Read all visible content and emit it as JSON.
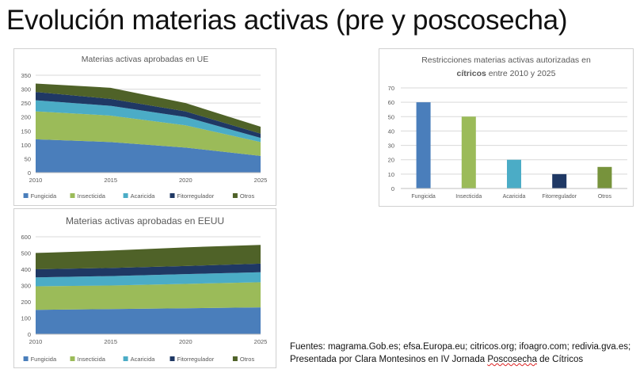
{
  "slide": {
    "title": "Evolución materias activas (pre y poscosecha)",
    "sources_line1": "Fuentes: magrama.Gob.es; efsa.Europa.eu; citricos.org; ifoagro.com; redivia.gva.es;",
    "sources_line2_prefix": "Presentada por Clara Montesinos en IV Jornada ",
    "sources_line2_underlined": "Poscosecha",
    "sources_line2_suffix": " de Cítricos"
  },
  "chart_data": [
    {
      "id": "ue",
      "type": "area",
      "stacked": true,
      "title": "Materias activas aprobadas en UE",
      "categories": [
        "2010",
        "2015",
        "2020",
        "2025"
      ],
      "ylim": [
        0,
        350
      ],
      "yticks": [
        0,
        50,
        100,
        150,
        200,
        250,
        300,
        350
      ],
      "grid": true,
      "legend_position": "bottom",
      "series": [
        {
          "name": "Fungicida",
          "color": "#4a7ebb",
          "values": [
            120,
            110,
            90,
            60
          ]
        },
        {
          "name": "Insecticida",
          "color": "#9bbb59",
          "values": [
            100,
            95,
            80,
            50
          ]
        },
        {
          "name": "Acaricida",
          "color": "#4bacc6",
          "values": [
            40,
            35,
            30,
            15
          ]
        },
        {
          "name": "Fitorregulador",
          "color": "#1f3864",
          "values": [
            30,
            25,
            20,
            15
          ]
        },
        {
          "name": "Otros",
          "color": "#4f6228",
          "values": [
            30,
            40,
            30,
            25
          ]
        }
      ]
    },
    {
      "id": "eeuu",
      "type": "area",
      "stacked": true,
      "title": "Materias activas aprobadas en EEUU",
      "categories": [
        "2010",
        "2015",
        "2020",
        "2025"
      ],
      "ylim": [
        0,
        600
      ],
      "yticks": [
        0,
        100,
        200,
        300,
        400,
        500,
        600
      ],
      "grid": true,
      "legend_position": "bottom",
      "series": [
        {
          "name": "Fungicida",
          "color": "#4a7ebb",
          "values": [
            150,
            155,
            160,
            165
          ]
        },
        {
          "name": "Insecticida",
          "color": "#9bbb59",
          "values": [
            145,
            145,
            150,
            155
          ]
        },
        {
          "name": "Acaricida",
          "color": "#4bacc6",
          "values": [
            55,
            58,
            60,
            62
          ]
        },
        {
          "name": "Fitorregulador",
          "color": "#1f3864",
          "values": [
            50,
            50,
            50,
            53
          ]
        },
        {
          "name": "Otros",
          "color": "#4f6228",
          "values": [
            100,
            107,
            115,
            115
          ]
        }
      ]
    },
    {
      "id": "citricos",
      "type": "bar",
      "title_prefix": "Restricciones materias activas autorizadas en",
      "title_bold": "cítricos",
      "title_suffix": " entre 2010 y 2025",
      "categories": [
        "Fungicida",
        "Insecticida",
        "Acaricida",
        "Fitorregulador",
        "Otros"
      ],
      "values": [
        60,
        50,
        20,
        10,
        15
      ],
      "colors": [
        "#4a7ebb",
        "#9bbb59",
        "#4bacc6",
        "#1f3864",
        "#77933c"
      ],
      "ylim": [
        0,
        70
      ],
      "yticks": [
        0,
        10,
        20,
        30,
        40,
        50,
        60,
        70
      ],
      "grid": true
    }
  ]
}
